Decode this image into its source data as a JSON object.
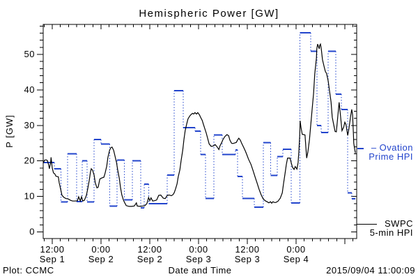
{
  "title": "Hemispheric Power [GW]",
  "footer": {
    "left": "Plot: CCMC",
    "right": "2015/09/04 11:00:09"
  },
  "axes": {
    "xlabel": "Date and Time",
    "ylabel": "P [GW]",
    "yticks": [
      0,
      10,
      20,
      30,
      40,
      50
    ],
    "y_minor_step": 2,
    "x_minor_step_hours": 2,
    "x_major_extra_t": [
      72
    ],
    "xticks": [
      {
        "t": 0,
        "time": "12:00",
        "date": "Sep 1"
      },
      {
        "t": 12,
        "time": "0:00",
        "date": "Sep 2"
      },
      {
        "t": 24,
        "time": "12:00",
        "date": "Sep 2"
      },
      {
        "t": 36,
        "time": "0:00",
        "date": "Sep 3"
      },
      {
        "t": 48,
        "time": "12:00",
        "date": "Sep 3"
      },
      {
        "t": 60,
        "time": "0:00",
        "date": "Sep 4"
      }
    ]
  },
  "legend": {
    "ovation": {
      "line1": "– Ovation",
      "line2": "Prime HPI"
    },
    "swpc": {
      "line1": "SWPC",
      "line2": "5-min HPI"
    }
  },
  "colors": {
    "ovation": "#2244cc",
    "swpc": "#000000",
    "axis": "#000000",
    "background": "#ffffff"
  },
  "chart_data": {
    "type": "line",
    "title": "Hemispheric Power [GW]",
    "xlabel": "Date and Time",
    "ylabel": "P [GW]",
    "x_unit": "hours since 2015-09-01 12:00",
    "tlim": [
      -2.23,
      74.6
    ],
    "ylim": [
      -1.9,
      58.4
    ],
    "grid": false,
    "legend_position": "right-outside",
    "series": [
      {
        "name": "SWPC 5-min HPI",
        "style": "solid",
        "color": "#000000",
        "points": [
          [
            -2.2,
            19.4
          ],
          [
            -1.9,
            20.2
          ],
          [
            -1.5,
            20.3
          ],
          [
            -1.2,
            20.1
          ],
          [
            -0.9,
            18.9
          ],
          [
            -0.7,
            17.8
          ],
          [
            -0.4,
            19.5
          ],
          [
            -0.3,
            21.0
          ],
          [
            0.0,
            18.0
          ],
          [
            0.3,
            16.6
          ],
          [
            0.6,
            16.4
          ],
          [
            0.9,
            15.7
          ],
          [
            1.2,
            15.6
          ],
          [
            1.5,
            15.5
          ],
          [
            1.7,
            13.9
          ],
          [
            2.1,
            11.8
          ],
          [
            2.4,
            10.3
          ],
          [
            2.9,
            9.7
          ],
          [
            3.4,
            9.4
          ],
          [
            3.9,
            9.3
          ],
          [
            4.5,
            8.9
          ],
          [
            5.0,
            8.7
          ],
          [
            5.7,
            8.7
          ],
          [
            6.2,
            8.8
          ],
          [
            6.5,
            9.9
          ],
          [
            6.9,
            8.7
          ],
          [
            7.2,
            9.9
          ],
          [
            7.5,
            8.7
          ],
          [
            7.9,
            8.9
          ],
          [
            8.4,
            10.3
          ],
          [
            8.7,
            12.0
          ],
          [
            9.1,
            14.5
          ],
          [
            9.4,
            16.8
          ],
          [
            9.6,
            17.8
          ],
          [
            9.9,
            17.4
          ],
          [
            10.3,
            16.0
          ],
          [
            10.6,
            13.8
          ],
          [
            11.0,
            12.4
          ],
          [
            11.3,
            12.6
          ],
          [
            11.7,
            14.9
          ],
          [
            12.2,
            15.2
          ],
          [
            12.7,
            15.4
          ],
          [
            13.0,
            16.5
          ],
          [
            13.4,
            18.5
          ],
          [
            13.7,
            21.0
          ],
          [
            14.1,
            23.0
          ],
          [
            14.4,
            23.7
          ],
          [
            14.7,
            23.9
          ],
          [
            15.1,
            23.0
          ],
          [
            15.4,
            21.6
          ],
          [
            15.8,
            19.6
          ],
          [
            16.1,
            17.5
          ],
          [
            16.5,
            15.0
          ],
          [
            16.8,
            12.5
          ],
          [
            17.1,
            10.5
          ],
          [
            17.5,
            9.0
          ],
          [
            17.8,
            8.3
          ],
          [
            18.2,
            7.4
          ],
          [
            18.9,
            7.2
          ],
          [
            19.5,
            7.2
          ],
          [
            20.2,
            7.3
          ],
          [
            20.7,
            8.2
          ],
          [
            20.9,
            7.3
          ],
          [
            21.6,
            7.2
          ],
          [
            22.3,
            7.3
          ],
          [
            22.8,
            7.4
          ],
          [
            23.3,
            8.0
          ],
          [
            23.7,
            9.7
          ],
          [
            24.0,
            8.8
          ],
          [
            24.3,
            9.6
          ],
          [
            24.7,
            8.7
          ],
          [
            25.2,
            8.8
          ],
          [
            25.7,
            9.0
          ],
          [
            26.2,
            10.3
          ],
          [
            26.7,
            10.4
          ],
          [
            27.3,
            9.5
          ],
          [
            27.8,
            9.4
          ],
          [
            28.3,
            10.3
          ],
          [
            28.8,
            10.4
          ],
          [
            29.3,
            10.2
          ],
          [
            29.7,
            10.5
          ],
          [
            30.0,
            11.0
          ],
          [
            30.3,
            12.0
          ],
          [
            30.7,
            13.5
          ],
          [
            31.0,
            15.5
          ],
          [
            31.4,
            17.5
          ],
          [
            31.7,
            20.0
          ],
          [
            32.1,
            23.0
          ],
          [
            32.4,
            26.0
          ],
          [
            32.7,
            28.5
          ],
          [
            33.1,
            30.5
          ],
          [
            33.4,
            31.8
          ],
          [
            33.8,
            32.6
          ],
          [
            34.1,
            33.0
          ],
          [
            34.5,
            33.4
          ],
          [
            34.8,
            33.2
          ],
          [
            35.1,
            33.6
          ],
          [
            35.5,
            33.2
          ],
          [
            35.8,
            33.6
          ],
          [
            36.2,
            33.0
          ],
          [
            36.5,
            32.3
          ],
          [
            36.9,
            31.4
          ],
          [
            37.2,
            30.3
          ],
          [
            37.9,
            27.8
          ],
          [
            38.6,
            24.8
          ],
          [
            39.1,
            24.1
          ],
          [
            39.6,
            24.2
          ],
          [
            40.1,
            24.6
          ],
          [
            40.6,
            23.9
          ],
          [
            41.0,
            23.2
          ],
          [
            41.3,
            24.3
          ],
          [
            41.7,
            25.2
          ],
          [
            42.0,
            26.0
          ],
          [
            42.5,
            26.9
          ],
          [
            43.0,
            27.4
          ],
          [
            43.4,
            27.1
          ],
          [
            43.7,
            25.9
          ],
          [
            44.1,
            25.0
          ],
          [
            44.4,
            24.9
          ],
          [
            44.7,
            25.0
          ],
          [
            45.3,
            25.2
          ],
          [
            45.6,
            25.9
          ],
          [
            45.9,
            26.4
          ],
          [
            46.3,
            25.8
          ],
          [
            46.6,
            25.0
          ],
          [
            47.1,
            23.8
          ],
          [
            47.5,
            22.8
          ],
          [
            47.8,
            22.0
          ],
          [
            48.3,
            20.5
          ],
          [
            48.9,
            19.0
          ],
          [
            49.4,
            17.3
          ],
          [
            49.9,
            15.5
          ],
          [
            50.4,
            13.8
          ],
          [
            50.9,
            12.0
          ],
          [
            51.4,
            10.5
          ],
          [
            51.9,
            9.3
          ],
          [
            52.5,
            8.7
          ],
          [
            53.0,
            8.4
          ],
          [
            53.3,
            8.2
          ],
          [
            53.7,
            8.5
          ],
          [
            54.0,
            8.1
          ],
          [
            54.3,
            8.5
          ],
          [
            54.7,
            8.3
          ],
          [
            55.0,
            8.3
          ],
          [
            55.5,
            8.6
          ],
          [
            56.1,
            9.5
          ],
          [
            56.6,
            11.0
          ],
          [
            56.9,
            13.5
          ],
          [
            57.3,
            16.5
          ],
          [
            57.6,
            19.0
          ],
          [
            57.9,
            20.8
          ],
          [
            58.5,
            20.8
          ],
          [
            58.8,
            19.5
          ],
          [
            59.1,
            18.2
          ],
          [
            59.5,
            17.6
          ],
          [
            59.8,
            18.4
          ],
          [
            60.2,
            17.7
          ],
          [
            60.5,
            19.5
          ],
          [
            60.7,
            23.0
          ],
          [
            60.9,
            27.5
          ],
          [
            61.0,
            31.3
          ],
          [
            61.2,
            29.5
          ],
          [
            61.5,
            27.5
          ],
          [
            61.9,
            27.4
          ],
          [
            62.2,
            27.3
          ],
          [
            62.4,
            24.0
          ],
          [
            62.6,
            20.8
          ],
          [
            62.9,
            22.5
          ],
          [
            63.3,
            26.0
          ],
          [
            63.6,
            30.0
          ],
          [
            63.9,
            34.0
          ],
          [
            64.3,
            39.0
          ],
          [
            64.6,
            44.5
          ],
          [
            65.0,
            49.0
          ],
          [
            65.1,
            51.5
          ],
          [
            65.3,
            52.9
          ],
          [
            65.5,
            52.2
          ],
          [
            65.7,
            51.6
          ],
          [
            65.8,
            52.5
          ],
          [
            66.0,
            52.9
          ],
          [
            66.2,
            51.5
          ],
          [
            66.5,
            48.5
          ],
          [
            66.9,
            46.5
          ],
          [
            67.2,
            45.2
          ],
          [
            67.5,
            44.6
          ],
          [
            67.9,
            42.5
          ],
          [
            68.2,
            40.0
          ],
          [
            68.6,
            36.6
          ],
          [
            68.9,
            32.3
          ],
          [
            69.3,
            30.0
          ],
          [
            69.6,
            28.3
          ],
          [
            69.9,
            28.2
          ],
          [
            70.3,
            33.0
          ],
          [
            70.6,
            36.5
          ],
          [
            70.9,
            33.0
          ],
          [
            71.3,
            28.5
          ],
          [
            71.7,
            29.5
          ],
          [
            72.0,
            30.9
          ],
          [
            72.3,
            30.2
          ],
          [
            72.7,
            27.2
          ],
          [
            73.0,
            29.0
          ],
          [
            73.4,
            32.5
          ],
          [
            73.7,
            34.5
          ],
          [
            73.9,
            33.0
          ],
          [
            74.1,
            28.0
          ],
          [
            74.2,
            25.0
          ],
          [
            74.4,
            23.4
          ],
          [
            74.6,
            22.2
          ]
        ]
      },
      {
        "name": "Ovation Prime HPI",
        "style": "step-dotted",
        "color": "#2244cc",
        "segments": [
          [
            -2.2,
            0.5,
            19.5
          ],
          [
            0.5,
            2.1,
            17.8
          ],
          [
            2.1,
            3.8,
            8.4
          ],
          [
            3.8,
            6.0,
            22.0
          ],
          [
            6.0,
            7.4,
            8.5
          ],
          [
            7.4,
            8.6,
            20.0
          ],
          [
            8.6,
            10.3,
            8.4
          ],
          [
            10.3,
            12.0,
            26.0
          ],
          [
            12.0,
            14.1,
            24.8
          ],
          [
            14.1,
            15.9,
            7.3
          ],
          [
            15.9,
            17.7,
            20.2
          ],
          [
            17.7,
            19.7,
            9.0
          ],
          [
            19.7,
            21.8,
            20.0
          ],
          [
            21.8,
            22.6,
            6.8
          ],
          [
            22.6,
            23.7,
            13.5
          ],
          [
            23.7,
            28.3,
            8.0
          ],
          [
            28.3,
            30.0,
            16.0
          ],
          [
            30.0,
            32.2,
            39.8
          ],
          [
            32.2,
            35.1,
            29.4
          ],
          [
            35.1,
            36.5,
            28.4
          ],
          [
            36.5,
            37.7,
            21.8
          ],
          [
            37.7,
            39.8,
            9.4
          ],
          [
            39.8,
            41.8,
            27.3
          ],
          [
            41.8,
            45.1,
            21.8
          ],
          [
            45.1,
            45.6,
            23.1
          ],
          [
            45.6,
            46.8,
            15.6
          ],
          [
            46.8,
            49.7,
            9.4
          ],
          [
            49.7,
            51.9,
            7.0
          ],
          [
            51.9,
            53.7,
            25.1
          ],
          [
            53.7,
            55.4,
            15.9
          ],
          [
            55.4,
            56.7,
            21.2
          ],
          [
            56.7,
            58.8,
            23.3
          ],
          [
            58.8,
            60.9,
            8.2
          ],
          [
            60.9,
            63.6,
            56.1
          ],
          [
            63.6,
            65.1,
            50.9
          ],
          [
            65.1,
            66.2,
            30.0
          ],
          [
            66.2,
            67.9,
            28.0
          ],
          [
            67.9,
            69.8,
            50.9
          ],
          [
            69.8,
            71.1,
            38.8
          ],
          [
            71.1,
            72.7,
            34.5
          ],
          [
            72.7,
            73.7,
            11.0
          ],
          [
            73.7,
            74.6,
            9.3
          ]
        ]
      }
    ]
  }
}
